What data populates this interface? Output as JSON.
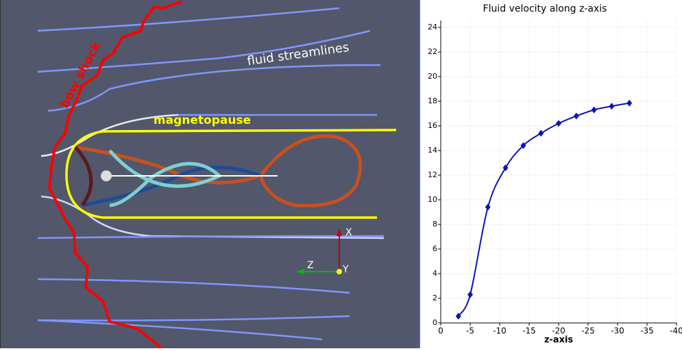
{
  "viewport": {
    "labels": {
      "bow_shock": "bow shock",
      "streamlines": "fluid streamlines",
      "magnetopause": "magnetopause"
    },
    "axes": {
      "x": "X",
      "y": "Y",
      "z": "Z"
    }
  },
  "chart_data": {
    "type": "line",
    "title": "Fluid velocity along z-axis",
    "x_label": "z-axis",
    "x": [
      -3,
      -5,
      -8,
      -11,
      -14,
      -17,
      -20,
      -23,
      -26,
      -29,
      -32
    ],
    "series": [
      {
        "color": "#0a14b4",
        "values": [
          0.55,
          2.3,
          9.4,
          12.6,
          14.4,
          15.4,
          16.2,
          16.8,
          17.3,
          17.6,
          17.85
        ]
      }
    ],
    "xlim": [
      0,
      -40
    ],
    "xticks": [
      0,
      -5,
      -10,
      -15,
      -20,
      -25,
      -30,
      -35,
      -40
    ],
    "ylim": [
      0,
      24
    ],
    "yticks": [
      0,
      2,
      4,
      6,
      8,
      10,
      12,
      14,
      16,
      18,
      20,
      22,
      24
    ],
    "grid": true
  }
}
